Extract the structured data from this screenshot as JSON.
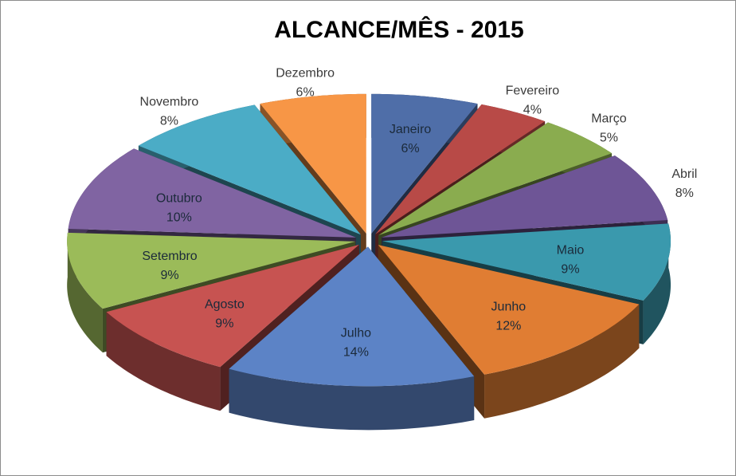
{
  "chart_data": {
    "type": "pie",
    "title": "ALCANCE/MÊS - 2015",
    "categories": [
      "Janeiro",
      "Fevereiro",
      "Março",
      "Abril",
      "Maio",
      "Junho",
      "Julho",
      "Agosto",
      "Setembro",
      "Outubro",
      "Novembro",
      "Dezembro"
    ],
    "values": [
      6,
      4,
      5,
      8,
      9,
      12,
      14,
      9,
      9,
      10,
      8,
      6
    ],
    "value_labels": [
      "6%",
      "4%",
      "5%",
      "8%",
      "9%",
      "12%",
      "14%",
      "9%",
      "9%",
      "10%",
      "8%",
      "6%"
    ],
    "colors": [
      "#4f6ea8",
      "#b84a47",
      "#8aac4f",
      "#6e5596",
      "#3a99ad",
      "#e07d33",
      "#5c83c6",
      "#c75351",
      "#9bbb59",
      "#8064a2",
      "#4bacc6",
      "#f79646"
    ],
    "label_colors": [
      "#1b2a3a",
      "#3a3a3a",
      "#3a3a3a",
      "#3a3a3a",
      "#1b2a3a",
      "#1b2a3a",
      "#1b2a3a",
      "#1b2a3a",
      "#1b2a3a",
      "#1b2a3a",
      "#3a3a3a",
      "#3a3a3a"
    ],
    "style": "3d-exploded",
    "legend": "none"
  }
}
